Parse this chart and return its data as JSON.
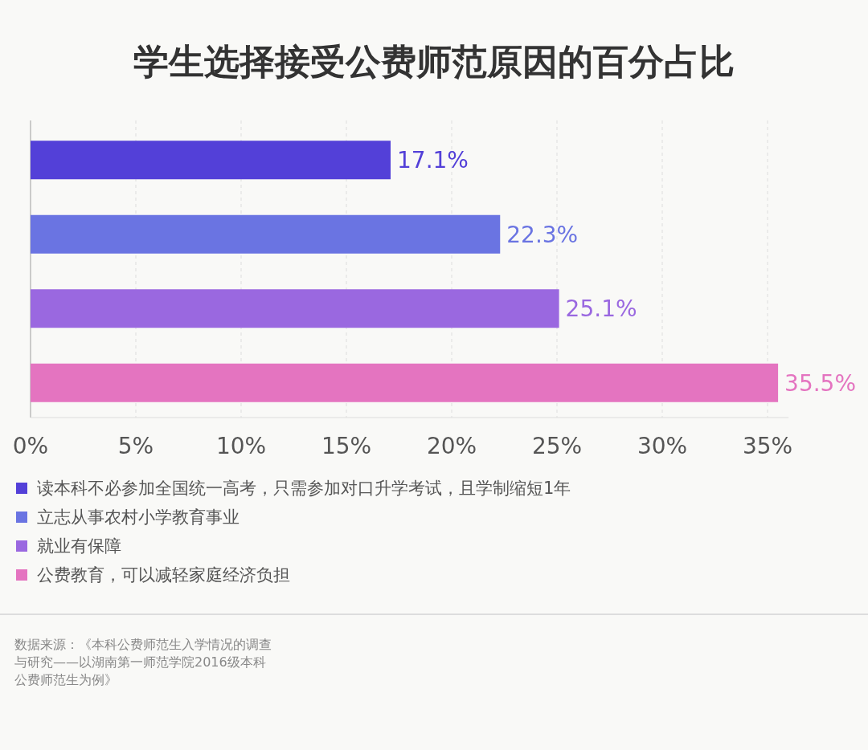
{
  "chart_data": {
    "type": "bar",
    "orientation": "horizontal",
    "title": "学生选择接受公费师范原因的百分占比",
    "categories": [
      null,
      null,
      null,
      null
    ],
    "series": [
      {
        "name": "读本科不必参加全国统一高考，只需参加对口升学考试，且学制缩短1年",
        "color": "#5340d8",
        "values": [
          17.1,
          null,
          null,
          null
        ],
        "value_labels": [
          "17.1%",
          null,
          null,
          null
        ]
      },
      {
        "name": "立志从事农村小学教育事业",
        "color": "#6a74e2",
        "values": [
          null,
          22.3,
          null,
          null
        ],
        "value_labels": [
          null,
          "22.3%",
          null,
          null
        ]
      },
      {
        "name": "就业有保障",
        "color": "#9a68e0",
        "values": [
          null,
          null,
          25.1,
          null
        ],
        "value_labels": [
          null,
          null,
          "25.1%",
          null
        ]
      },
      {
        "name": "公费教育，可以减轻家庭经济负担",
        "color": "#e474c0",
        "values": [
          null,
          null,
          null,
          35.5
        ],
        "value_labels": [
          null,
          null,
          null,
          "35.5%"
        ]
      }
    ],
    "xlim": [
      0,
      36
    ],
    "xticks": [
      {
        "value": 0,
        "label": "0%"
      },
      {
        "value": 5,
        "label": "5%"
      },
      {
        "value": 10,
        "label": "10%"
      },
      {
        "value": 15,
        "label": "15%"
      },
      {
        "value": 20,
        "label": "20%"
      },
      {
        "value": 25,
        "label": "25%"
      },
      {
        "value": 30,
        "label": "30%"
      },
      {
        "value": 35,
        "label": "35%"
      }
    ],
    "grid": "x",
    "legend": "bottom",
    "annotations": [
      "数据来源：《本科公费师范生入学情况的调查与研究——以湖南第一师范学院2016级本科公费师范生为例》"
    ]
  }
}
